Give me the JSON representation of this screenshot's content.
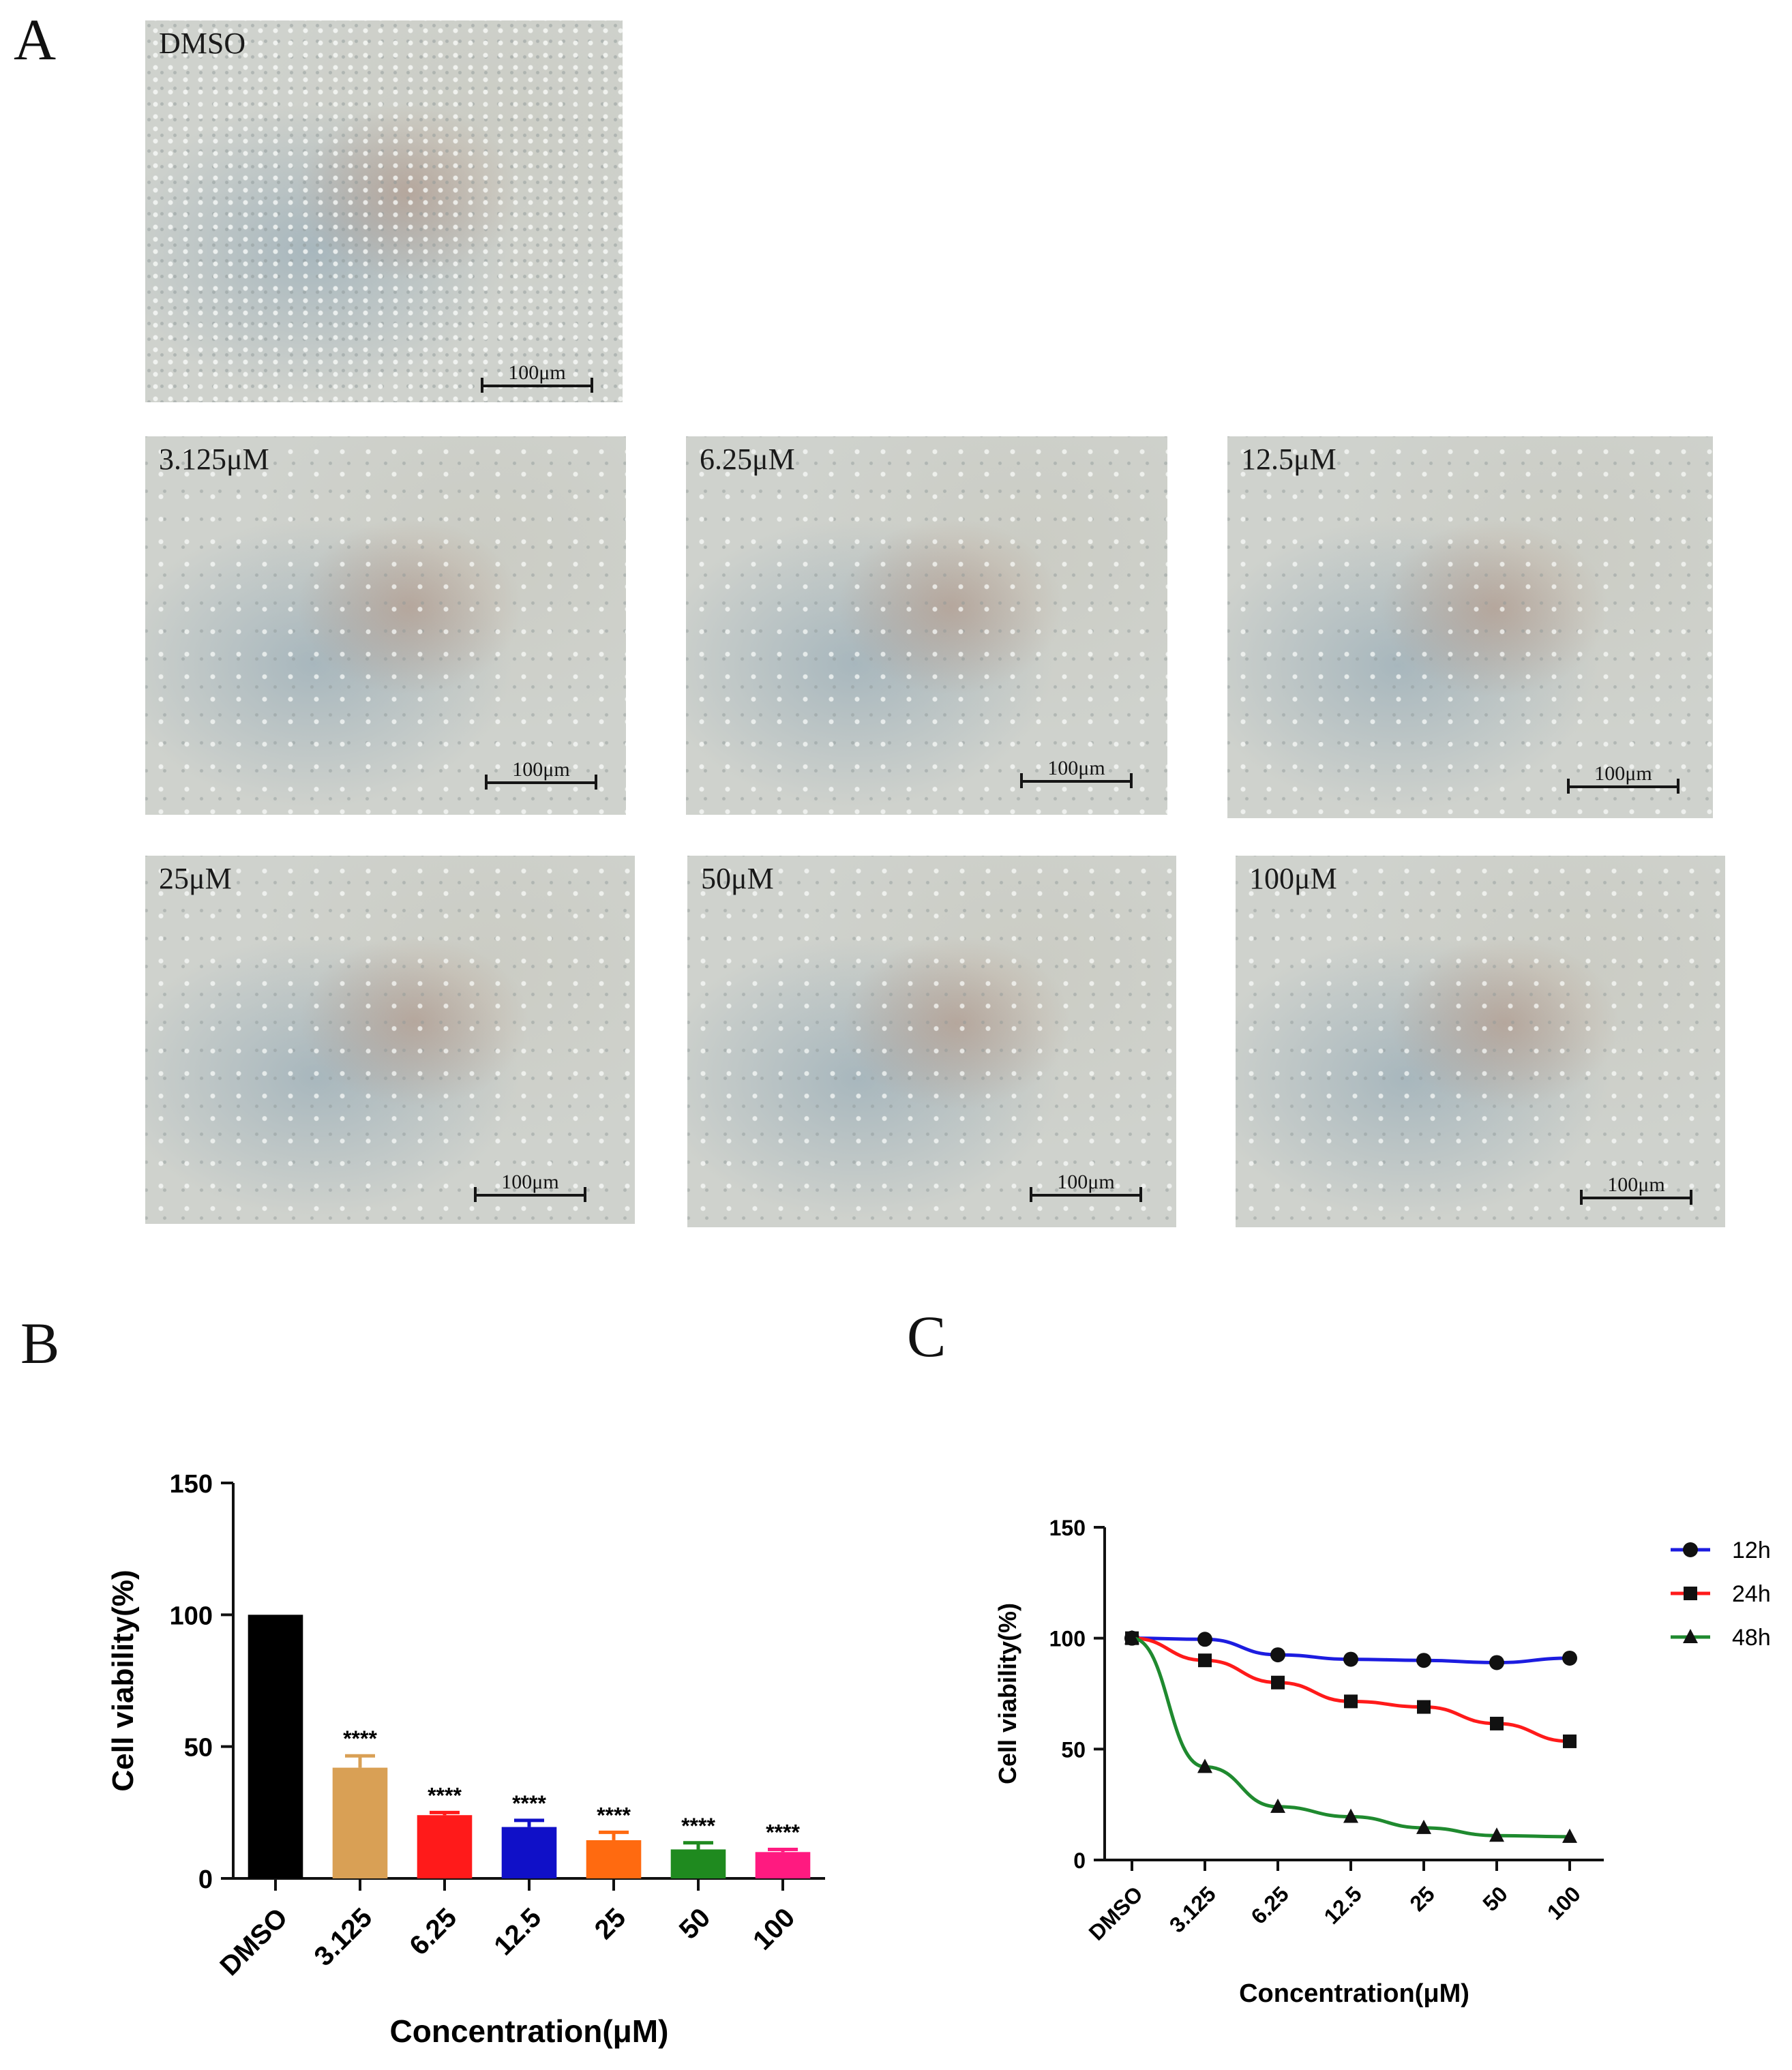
{
  "panels": {
    "a": "A",
    "b": "B",
    "c": "C"
  },
  "micrographs": [
    {
      "label": "DMSO",
      "scale": "100μm"
    },
    {
      "label": "3.125μM",
      "scale": "100μm"
    },
    {
      "label": "6.25μM",
      "scale": "100μm"
    },
    {
      "label": "12.5μM",
      "scale": "100μm"
    },
    {
      "label": "25μM",
      "scale": "100μm"
    },
    {
      "label": "50μM",
      "scale": "100μm"
    },
    {
      "label": "100μM",
      "scale": "100μm"
    }
  ],
  "chart_data": [
    {
      "type": "bar",
      "panel": "B",
      "categories": [
        "DMSO",
        "3.125",
        "6.25",
        "12.5",
        "25",
        "50",
        "100"
      ],
      "values": [
        100,
        42,
        24,
        19.5,
        14.5,
        11,
        10
      ],
      "errors": [
        0,
        4.5,
        1,
        2.5,
        3,
        2.5,
        1
      ],
      "significance": [
        "",
        "****",
        "****",
        "****",
        "****",
        "****",
        "****"
      ],
      "colors": [
        "#000000",
        "#d9a055",
        "#ff1a1a",
        "#1010c8",
        "#ff6a10",
        "#1f8a1f",
        "#ff1a80"
      ],
      "xlabel": "Concentration(μM)",
      "ylabel": "Cell viability(%)",
      "ylim": [
        0,
        150
      ],
      "yticks": [
        "0",
        "50",
        "100",
        "150"
      ],
      "grid": false
    },
    {
      "type": "line",
      "panel": "C",
      "categories": [
        "DMSO",
        "3.125",
        "6.25",
        "12.5",
        "25",
        "50",
        "100"
      ],
      "series": [
        {
          "name": "12h",
          "color": "#1c1ce0",
          "marker": "circle",
          "values": [
            100,
            99.5,
            92.5,
            90.5,
            90,
            89,
            91
          ]
        },
        {
          "name": "24h",
          "color": "#ff1a1a",
          "marker": "square",
          "values": [
            100,
            90,
            80,
            71.5,
            69,
            61.5,
            53.5
          ]
        },
        {
          "name": "48h",
          "color": "#1f8a2f",
          "marker": "triangle",
          "values": [
            100,
            42,
            24,
            19.5,
            14.5,
            11,
            10.5
          ]
        }
      ],
      "xlabel": "Concentration(μM)",
      "ylabel": "Cell viability(%)",
      "ylim": [
        0,
        150
      ],
      "yticks": [
        "0",
        "50",
        "100",
        "150"
      ],
      "legend": "top-right",
      "grid": false
    }
  ]
}
